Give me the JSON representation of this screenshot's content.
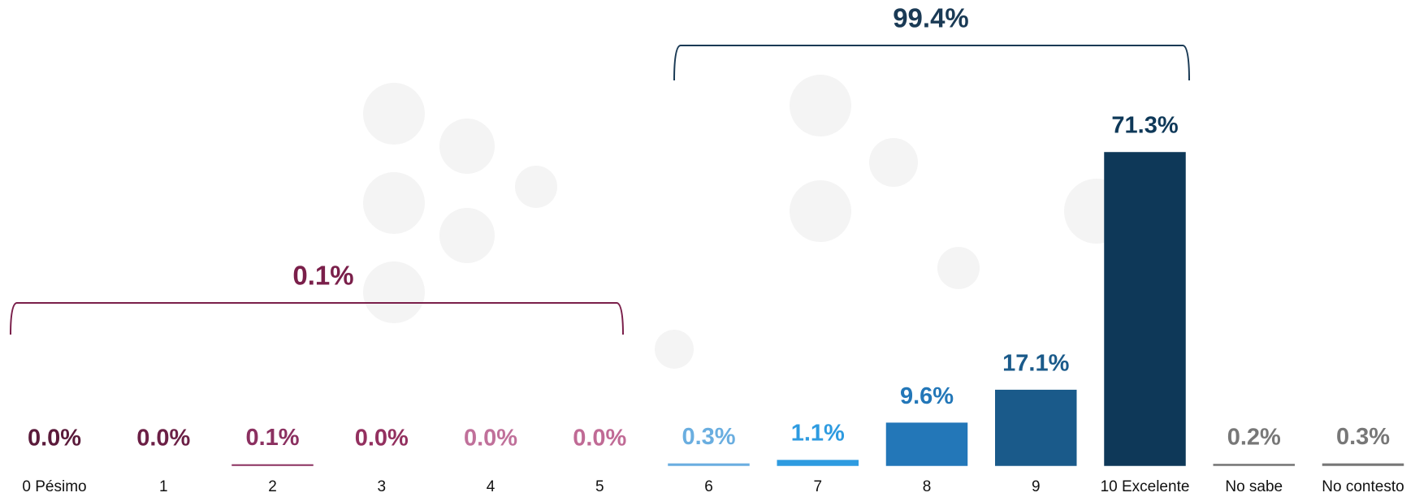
{
  "chart_data": {
    "type": "bar",
    "categories": [
      "0 Pésimo",
      "1",
      "2",
      "3",
      "4",
      "5",
      "6",
      "7",
      "8",
      "9",
      "10 Excelente",
      "No sabe",
      "No contesto"
    ],
    "values": [
      0.0,
      0.0,
      0.1,
      0.0,
      0.0,
      0.0,
      0.3,
      1.1,
      9.6,
      17.1,
      71.3,
      0.2,
      0.3
    ],
    "value_labels": [
      "0.0%",
      "0.0%",
      "0.1%",
      "0.0%",
      "0.0%",
      "0.0%",
      "0.3%",
      "1.1%",
      "9.6%",
      "17.1%",
      "71.3%",
      "0.2%",
      "0.3%"
    ],
    "colors": [
      "#5a1a3a",
      "#6b1f45",
      "#8b3060",
      "#93305f",
      "#c0709a",
      "#c06a95",
      "#6aaee0",
      "#2e9be0",
      "#2377b8",
      "#1a5a8a",
      "#0e3858",
      "#777777",
      "#777777"
    ],
    "annotations": [
      {
        "text": "0.1%",
        "color": "#7a1f4a"
      },
      {
        "text": "99.4%",
        "color": "#1a3a55"
      }
    ]
  }
}
